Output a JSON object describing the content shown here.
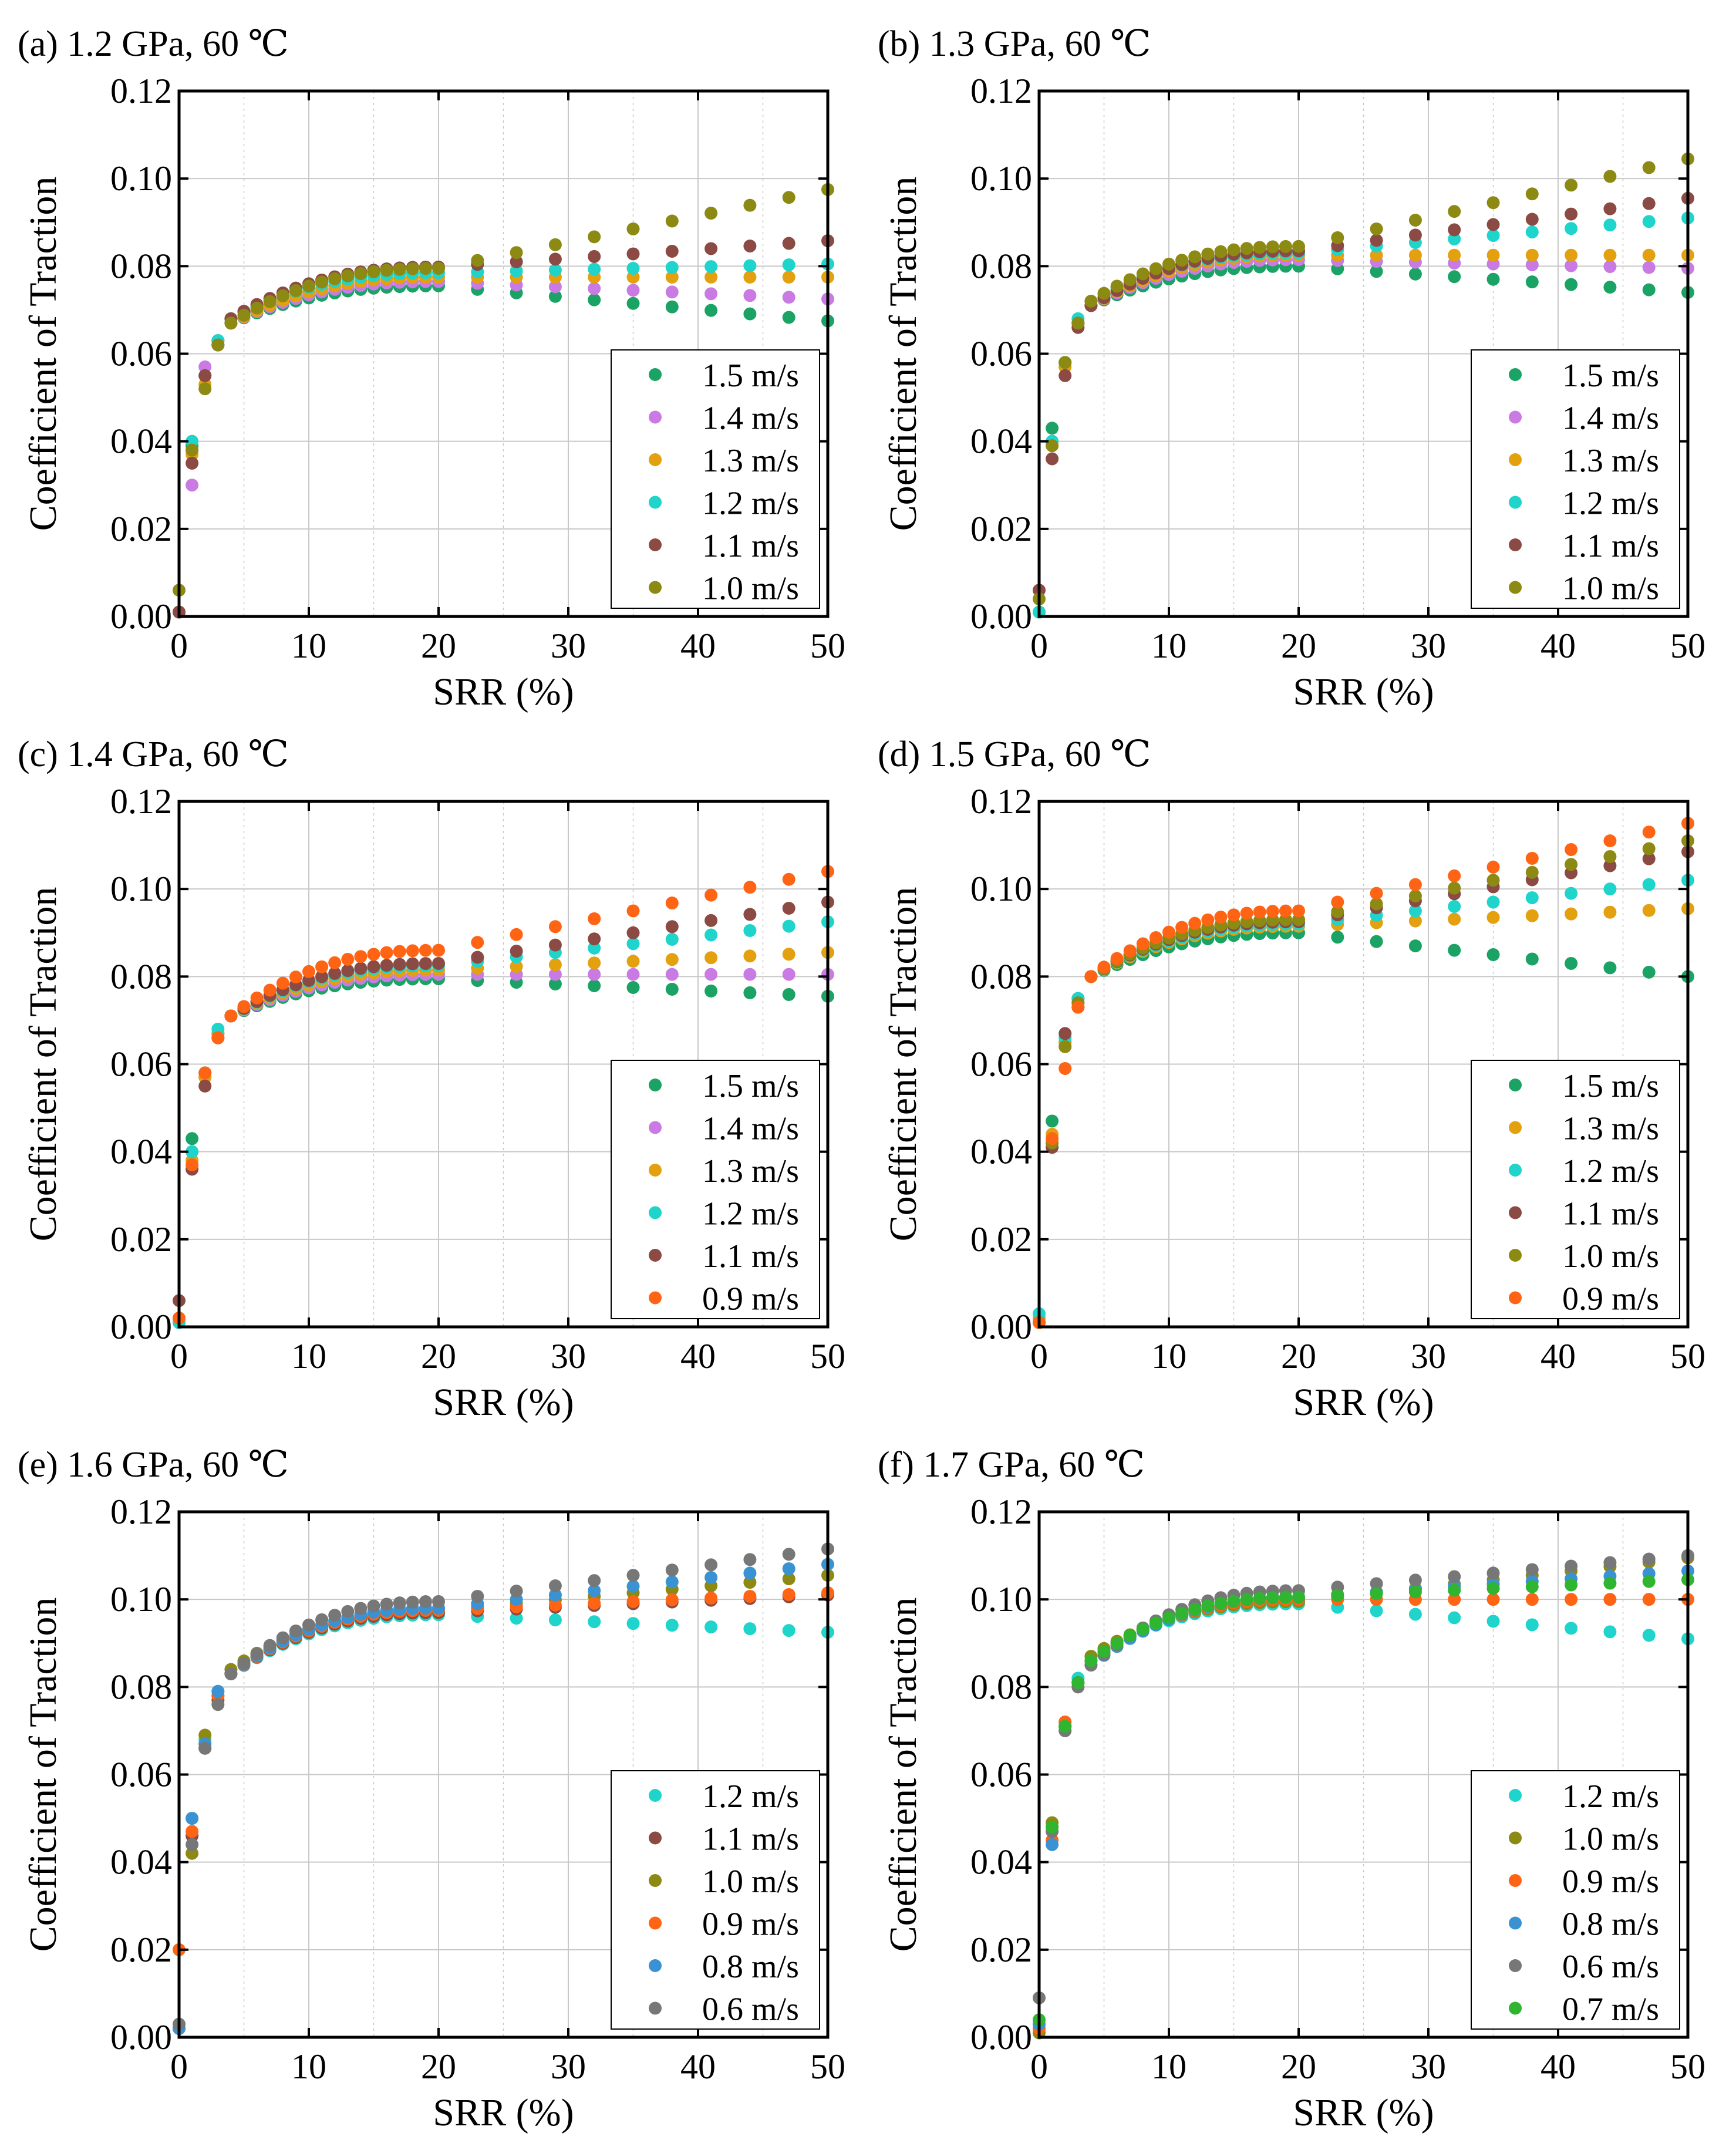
{
  "figure": {
    "background": "#ffffff",
    "grid_color": "#c8c8c8",
    "axis_color": "#000000"
  },
  "colors": {
    "1.5 m/s": "#1aa364",
    "1.4 m/s": "#c97be3",
    "1.3 m/s": "#e3a00f",
    "1.2 m/s": "#1ed4cb",
    "1.1 m/s": "#8b4a43",
    "1.0 m/s": "#8c8a12",
    "0.9 m/s": "#ff6414",
    "0.8 m/s": "#3a92d2",
    "0.7 m/s": "#2fb52f",
    "0.6 m/s": "#777777"
  },
  "chart_data": [
    {
      "id": "a",
      "type": "scatter",
      "title": "(a) 1.2 GPa, 60 ℃",
      "xlabel": "SRR (%)",
      "ylabel": "Coefficient of Traction",
      "xlim": [
        0,
        50
      ],
      "ylim": [
        0,
        0.12
      ],
      "xticks": [
        0,
        10,
        20,
        30,
        40,
        50
      ],
      "xtick_labels": [
        "0",
        "10",
        "20",
        "30",
        "40",
        "50"
      ],
      "yticks": [
        0,
        0.02,
        0.04,
        0.06,
        0.08,
        0.1,
        0.12
      ],
      "ytick_labels": [
        "0.00",
        "0.02",
        "0.04",
        "0.06",
        "0.08",
        "0.10",
        "0.12"
      ],
      "grid": true,
      "legend": "bottom-right",
      "series": [
        {
          "name": "1.5 m/s",
          "early": [
            0.001,
            0.039,
            0.055,
            0.063,
            0.067
          ],
          "plateau": 0.0755,
          "end_slope": -0.008
        },
        {
          "name": "1.4 m/s",
          "early": [
            0.001,
            0.03,
            0.057,
            0.063,
            0.067
          ],
          "plateau": 0.0765,
          "end_slope": -0.004
        },
        {
          "name": "1.3 m/s",
          "early": [
            0.001,
            0.037,
            0.053,
            0.062,
            0.067
          ],
          "plateau": 0.0775,
          "end_slope": 0.0
        },
        {
          "name": "1.2 m/s",
          "early": [
            0.001,
            0.04,
            0.055,
            0.063,
            0.068
          ],
          "plateau": 0.0785,
          "end_slope": 0.002
        },
        {
          "name": "1.1 m/s",
          "early": [
            0.001,
            0.035,
            0.055,
            0.062,
            0.068
          ],
          "plateau": 0.0798,
          "end_slope": 0.006
        },
        {
          "name": "1.0 m/s",
          "early": [
            0.006,
            0.038,
            0.052,
            0.062,
            0.067
          ],
          "plateau": 0.0795,
          "end_slope": 0.018
        }
      ]
    },
    {
      "id": "b",
      "type": "scatter",
      "title": "(b) 1.3 GPa, 60 ℃",
      "xlabel": "SRR (%)",
      "ylabel": "Coefficient of Traction",
      "xlim": [
        0,
        50
      ],
      "ylim": [
        0,
        0.12
      ],
      "xticks": [
        0,
        10,
        20,
        30,
        40,
        50
      ],
      "xtick_labels": [
        "0",
        "10",
        "20",
        "30",
        "40",
        "50"
      ],
      "yticks": [
        0,
        0.02,
        0.04,
        0.06,
        0.08,
        0.1,
        0.12
      ],
      "ytick_labels": [
        "0.00",
        "0.02",
        "0.04",
        "0.06",
        "0.08",
        "0.10",
        "0.12"
      ],
      "grid": true,
      "legend": "bottom-right",
      "series": [
        {
          "name": "1.5 m/s",
          "early": [
            0.001,
            0.043,
            0.058,
            0.067,
            0.071
          ],
          "plateau": 0.08,
          "end_slope": -0.006
        },
        {
          "name": "1.4 m/s",
          "early": [
            0.001,
            0.04,
            0.057,
            0.067,
            0.071
          ],
          "plateau": 0.0815,
          "end_slope": -0.002
        },
        {
          "name": "1.3 m/s",
          "early": [
            0.001,
            0.039,
            0.057,
            0.067,
            0.071
          ],
          "plateau": 0.0825,
          "end_slope": 0.0
        },
        {
          "name": "1.2 m/s",
          "early": [
            0.001,
            0.04,
            0.058,
            0.068,
            0.072
          ],
          "plateau": 0.083,
          "end_slope": 0.008
        },
        {
          "name": "1.1 m/s",
          "early": [
            0.006,
            0.036,
            0.055,
            0.066,
            0.071
          ],
          "plateau": 0.0835,
          "end_slope": 0.012
        },
        {
          "name": "1.0 m/s",
          "early": [
            0.004,
            0.039,
            0.058,
            0.067,
            0.072
          ],
          "plateau": 0.0845,
          "end_slope": 0.02
        }
      ]
    },
    {
      "id": "c",
      "type": "scatter",
      "title": "(c) 1.4 GPa, 60 ℃",
      "xlabel": "SRR (%)",
      "ylabel": "Coefficient of Traction",
      "xlim": [
        0,
        50
      ],
      "ylim": [
        0,
        0.12
      ],
      "xticks": [
        0,
        10,
        20,
        30,
        40,
        50
      ],
      "xtick_labels": [
        "0",
        "10",
        "20",
        "30",
        "40",
        "50"
      ],
      "yticks": [
        0,
        0.02,
        0.04,
        0.06,
        0.08,
        0.1,
        0.12
      ],
      "ytick_labels": [
        "0.00",
        "0.02",
        "0.04",
        "0.06",
        "0.08",
        "0.10",
        "0.12"
      ],
      "grid": true,
      "legend": "bottom-right",
      "series": [
        {
          "name": "1.5 m/s",
          "early": [
            0.001,
            0.043,
            0.058,
            0.067,
            0.071
          ],
          "plateau": 0.0795,
          "end_slope": -0.004
        },
        {
          "name": "1.4 m/s",
          "early": [
            0.001,
            0.04,
            0.057,
            0.067,
            0.071
          ],
          "plateau": 0.0805,
          "end_slope": 0.0
        },
        {
          "name": "1.3 m/s",
          "early": [
            0.002,
            0.038,
            0.057,
            0.067,
            0.071
          ],
          "plateau": 0.0815,
          "end_slope": 0.004
        },
        {
          "name": "1.2 m/s",
          "early": [
            0.001,
            0.04,
            0.058,
            0.068,
            0.071
          ],
          "plateau": 0.0825,
          "end_slope": 0.01
        },
        {
          "name": "1.1 m/s",
          "early": [
            0.006,
            0.036,
            0.055,
            0.066,
            0.071
          ],
          "plateau": 0.083,
          "end_slope": 0.014
        },
        {
          "name": "0.9 m/s",
          "early": [
            0.002,
            0.037,
            0.058,
            0.066,
            0.071
          ],
          "plateau": 0.086,
          "end_slope": 0.018
        }
      ]
    },
    {
      "id": "d",
      "type": "scatter",
      "title": "(d) 1.5 GPa, 60 ℃",
      "xlabel": "SRR (%)",
      "ylabel": "Coefficient of Traction",
      "xlim": [
        0,
        50
      ],
      "ylim": [
        0,
        0.12
      ],
      "xticks": [
        0,
        10,
        20,
        30,
        40,
        50
      ],
      "xtick_labels": [
        "0",
        "10",
        "20",
        "30",
        "40",
        "50"
      ],
      "yticks": [
        0,
        0.02,
        0.04,
        0.06,
        0.08,
        0.1,
        0.12
      ],
      "ytick_labels": [
        "0.00",
        "0.02",
        "0.04",
        "0.06",
        "0.08",
        "0.10",
        "0.12"
      ],
      "grid": true,
      "legend": "bottom-right",
      "series": [
        {
          "name": "1.5 m/s",
          "early": [
            0.001,
            0.047,
            0.065,
            0.075,
            0.08
          ],
          "plateau": 0.09,
          "end_slope": -0.01
        },
        {
          "name": "1.3 m/s",
          "early": [
            0.002,
            0.044,
            0.065,
            0.074,
            0.08
          ],
          "plateau": 0.0915,
          "end_slope": 0.004
        },
        {
          "name": "1.2 m/s",
          "early": [
            0.003,
            0.042,
            0.066,
            0.075,
            0.08
          ],
          "plateau": 0.092,
          "end_slope": 0.01
        },
        {
          "name": "1.1 m/s",
          "early": [
            0.001,
            0.041,
            0.067,
            0.073,
            0.08
          ],
          "plateau": 0.0925,
          "end_slope": 0.016
        },
        {
          "name": "1.0 m/s",
          "early": [
            0.001,
            0.042,
            0.064,
            0.074,
            0.08
          ],
          "plateau": 0.093,
          "end_slope": 0.018
        },
        {
          "name": "0.9 m/s",
          "early": [
            0.001,
            0.043,
            0.059,
            0.073,
            0.08
          ],
          "plateau": 0.095,
          "end_slope": 0.02
        }
      ]
    },
    {
      "id": "e",
      "type": "scatter",
      "title": "(e) 1.6 GPa, 60 ℃",
      "xlabel": "SRR (%)",
      "ylabel": "Coefficient of Traction",
      "xlim": [
        0,
        50
      ],
      "ylim": [
        0,
        0.12
      ],
      "xticks": [
        0,
        10,
        20,
        30,
        40,
        50
      ],
      "xtick_labels": [
        "0",
        "10",
        "20",
        "30",
        "40",
        "50"
      ],
      "yticks": [
        0,
        0.02,
        0.04,
        0.06,
        0.08,
        0.1,
        0.12
      ],
      "ytick_labels": [
        "0.00",
        "0.02",
        "0.04",
        "0.06",
        "0.08",
        "0.10",
        "0.12"
      ],
      "grid": true,
      "legend": "bottom-right",
      "series": [
        {
          "name": "1.2 m/s",
          "early": [
            0.003,
            0.05,
            0.068,
            0.079,
            0.083
          ],
          "plateau": 0.0965,
          "end_slope": -0.004
        },
        {
          "name": "1.1 m/s",
          "early": [
            0.002,
            0.046,
            0.066,
            0.077,
            0.083
          ],
          "plateau": 0.097,
          "end_slope": 0.004
        },
        {
          "name": "1.0 m/s",
          "early": [
            0.002,
            0.042,
            0.069,
            0.078,
            0.084
          ],
          "plateau": 0.0975,
          "end_slope": 0.008
        },
        {
          "name": "0.9 m/s",
          "early": [
            0.02,
            0.047,
            0.067,
            0.078,
            0.083
          ],
          "plateau": 0.0975,
          "end_slope": 0.004
        },
        {
          "name": "0.8 m/s",
          "early": [
            0.002,
            0.05,
            0.067,
            0.079,
            0.083
          ],
          "plateau": 0.098,
          "end_slope": 0.01
        },
        {
          "name": "0.6 m/s",
          "early": [
            0.003,
            0.044,
            0.066,
            0.076,
            0.083
          ],
          "plateau": 0.0995,
          "end_slope": 0.012
        }
      ]
    },
    {
      "id": "f",
      "type": "scatter",
      "title": "(f) 1.7 GPa, 60 ℃",
      "xlabel": "SRR (%)",
      "ylabel": "Coefficient of Traction",
      "xlim": [
        0,
        50
      ],
      "ylim": [
        0,
        0.12
      ],
      "xticks": [
        0,
        10,
        20,
        30,
        40,
        50
      ],
      "xtick_labels": [
        "0",
        "10",
        "20",
        "30",
        "40",
        "50"
      ],
      "yticks": [
        0,
        0.02,
        0.04,
        0.06,
        0.08,
        0.1,
        0.12
      ],
      "ytick_labels": [
        "0.00",
        "0.02",
        "0.04",
        "0.06",
        "0.08",
        "0.10",
        "0.12"
      ],
      "grid": true,
      "legend": "bottom-right",
      "series": [
        {
          "name": "1.2 m/s",
          "early": [
            0.003,
            0.048,
            0.072,
            0.082,
            0.087
          ],
          "plateau": 0.099,
          "end_slope": -0.008
        },
        {
          "name": "1.0 m/s",
          "early": [
            0.001,
            0.049,
            0.071,
            0.081,
            0.087
          ],
          "plateau": 0.0995,
          "end_slope": 0.01
        },
        {
          "name": "0.9 m/s",
          "early": [
            0.002,
            0.045,
            0.072,
            0.081,
            0.086
          ],
          "plateau": 0.1,
          "end_slope": 0.0
        },
        {
          "name": "0.8 m/s",
          "early": [
            0.003,
            0.044,
            0.071,
            0.081,
            0.085
          ],
          "plateau": 0.1005,
          "end_slope": 0.006
        },
        {
          "name": "0.6 m/s",
          "early": [
            0.009,
            0.047,
            0.07,
            0.08,
            0.085
          ],
          "plateau": 0.102,
          "end_slope": 0.008
        },
        {
          "name": "0.7 m/s",
          "early": [
            0.004,
            0.048,
            0.071,
            0.081,
            0.086
          ],
          "plateau": 0.1005,
          "end_slope": 0.004
        }
      ]
    }
  ]
}
